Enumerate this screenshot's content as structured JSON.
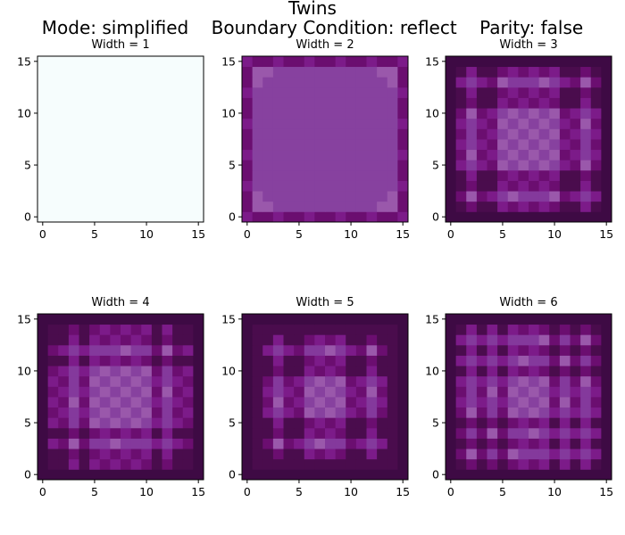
{
  "figure": {
    "title_line1": "Twins",
    "title_line2": "Mode: simplified    Boundary Condition: reflect    Parity: false"
  },
  "chart_data": [
    {
      "type": "heatmap",
      "title": "Width = 1",
      "xlim": [
        0,
        15
      ],
      "ylim": [
        0,
        15
      ],
      "xticks": [
        0,
        5,
        10,
        15
      ],
      "yticks": [
        0,
        5,
        10,
        15
      ],
      "grid": false,
      "description_of_values": "uniform field",
      "z": [
        [
          0.02
        ]
      ]
    },
    {
      "type": "heatmap",
      "title": "Width = 2",
      "xlim": [
        0,
        15
      ],
      "ylim": [
        0,
        15
      ],
      "xticks": [
        0,
        5,
        10,
        15
      ],
      "yticks": [
        0,
        5,
        10,
        15
      ],
      "grid": false,
      "z": [
        [
          0.55
        ]
      ]
    },
    {
      "type": "heatmap",
      "title": "Width = 3",
      "xlim": [
        0,
        15
      ],
      "ylim": [
        0,
        15
      ],
      "xticks": [
        0,
        5,
        10,
        15
      ],
      "yticks": [
        0,
        5,
        10,
        15
      ],
      "grid": false,
      "z": [
        [
          0.55
        ]
      ]
    },
    {
      "type": "heatmap",
      "title": "Width = 4",
      "xlim": [
        0,
        15
      ],
      "ylim": [
        0,
        15
      ],
      "xticks": [
        0,
        5,
        10,
        15
      ],
      "yticks": [
        0,
        5,
        10,
        15
      ],
      "grid": false,
      "z": [
        [
          0.55
        ]
      ]
    },
    {
      "type": "heatmap",
      "title": "Width = 5",
      "xlim": [
        0,
        15
      ],
      "ylim": [
        0,
        15
      ],
      "xticks": [
        0,
        5,
        10,
        15
      ],
      "yticks": [
        0,
        5,
        10,
        15
      ],
      "grid": false,
      "z": [
        [
          0.55
        ]
      ]
    },
    {
      "type": "heatmap",
      "title": "Width = 6",
      "xlim": [
        0,
        15
      ],
      "ylim": [
        0,
        15
      ],
      "xticks": [
        0,
        5,
        10,
        15
      ],
      "yticks": [
        0,
        5,
        10,
        15
      ],
      "grid": false,
      "z": [
        [
          0.55
        ]
      ]
    }
  ],
  "colors": {
    "width1_fill": "#f6fdfd",
    "purple_light": "#9a58ab",
    "purple_mid": "#87419f",
    "purple_base": "#84399c",
    "purple_strong": "#7c1b89",
    "purple_deep": "#6b0e70",
    "purple_dark": "#4a0c4d",
    "purple_darkest": "#3e0a44"
  }
}
